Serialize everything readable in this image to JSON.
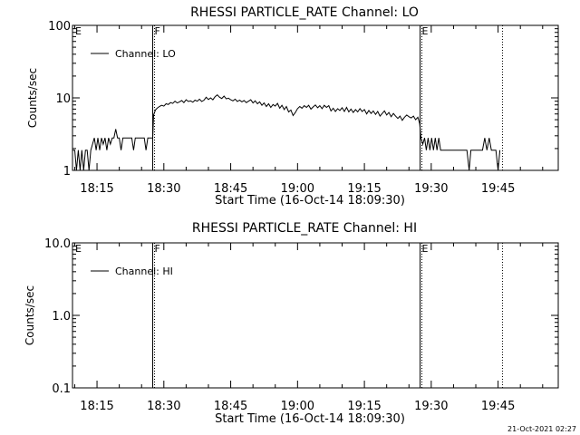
{
  "footer": {
    "timestamp": "21-Oct-2021 02:27"
  },
  "chart_data": [
    {
      "type": "line",
      "title": "RHESSI PARTICLE_RATE Channel: LO",
      "xlabel": "Start Time (16-Oct-14 18:09:30)",
      "ylabel": "Counts/sec",
      "yscale": "log",
      "xlim_minutes": [
        0,
        109
      ],
      "ylim": [
        1,
        100
      ],
      "x_ticks": [
        {
          "t": 5.5,
          "label": "18:15"
        },
        {
          "t": 20.5,
          "label": "18:30"
        },
        {
          "t": 35.5,
          "label": "18:45"
        },
        {
          "t": 50.5,
          "label": "19:00"
        },
        {
          "t": 65.5,
          "label": "19:15"
        },
        {
          "t": 80.5,
          "label": "19:30"
        },
        {
          "t": 95.5,
          "label": "19:45"
        }
      ],
      "y_ticks": [
        {
          "v": 1,
          "label": "1"
        },
        {
          "v": 10,
          "label": "10"
        },
        {
          "v": 100,
          "label": "100"
        }
      ],
      "markers": [
        {
          "t": 18.0,
          "label": "F",
          "style": "solid"
        },
        {
          "t": 18.4,
          "label": "",
          "style": "dotted"
        },
        {
          "t": 78.0,
          "label": "E",
          "style": "solid"
        },
        {
          "t": 78.4,
          "label": "",
          "style": "dotted"
        },
        {
          "t": 96.5,
          "label": "",
          "style": "dotted"
        },
        {
          "t": 0.2,
          "label": "E",
          "style": "none"
        }
      ],
      "legend": {
        "label": "Channel: LO",
        "position": "top-left"
      },
      "series": [
        {
          "name": "Channel: LO",
          "points": [
            [
              0,
              1.9
            ],
            [
              0.5,
              1.9
            ],
            [
              0.9,
              1
            ],
            [
              1.3,
              1.9
            ],
            [
              1.7,
              1
            ],
            [
              2.1,
              1.9
            ],
            [
              2.5,
              1
            ],
            [
              2.9,
              1.9
            ],
            [
              3.3,
              1.9
            ],
            [
              3.7,
              1
            ],
            [
              4.1,
              1.9
            ],
            [
              4.5,
              2.3
            ],
            [
              4.9,
              2.8
            ],
            [
              5.3,
              1.9
            ],
            [
              5.7,
              2.8
            ],
            [
              6.1,
              1.9
            ],
            [
              6.5,
              2.8
            ],
            [
              6.9,
              2.3
            ],
            [
              7.3,
              2.8
            ],
            [
              7.7,
              1.9
            ],
            [
              8.1,
              2.8
            ],
            [
              8.5,
              2.3
            ],
            [
              8.9,
              2.8
            ],
            [
              9.3,
              2.8
            ],
            [
              9.7,
              3.7
            ],
            [
              10.1,
              2.8
            ],
            [
              10.5,
              2.8
            ],
            [
              10.9,
              1.9
            ],
            [
              11.3,
              2.8
            ],
            [
              11.7,
              2.8
            ],
            [
              12.1,
              2.8
            ],
            [
              12.5,
              2.8
            ],
            [
              12.9,
              2.8
            ],
            [
              13.3,
              2.8
            ],
            [
              13.7,
              1.9
            ],
            [
              14.1,
              2.8
            ],
            [
              14.5,
              2.8
            ],
            [
              14.9,
              2.8
            ],
            [
              15.3,
              2.8
            ],
            [
              15.7,
              2.8
            ],
            [
              16.1,
              2.8
            ],
            [
              16.5,
              1.9
            ],
            [
              16.9,
              2.8
            ],
            [
              17.3,
              2.8
            ],
            [
              17.7,
              2.8
            ],
            [
              18.0,
              2.8
            ],
            [
              18.2,
              5.8
            ],
            [
              18.6,
              6.8
            ],
            [
              19.0,
              7.2
            ],
            [
              19.5,
              7.6
            ],
            [
              20,
              7.9
            ],
            [
              20.5,
              7.7
            ],
            [
              21,
              8.3
            ],
            [
              21.5,
              8.1
            ],
            [
              22,
              8.6
            ],
            [
              22.5,
              8.4
            ],
            [
              23,
              9.0
            ],
            [
              23.5,
              8.5
            ],
            [
              24,
              8.8
            ],
            [
              24.5,
              9.2
            ],
            [
              25,
              8.6
            ],
            [
              25.5,
              9.4
            ],
            [
              26,
              8.9
            ],
            [
              26.5,
              9.1
            ],
            [
              27,
              8.7
            ],
            [
              27.5,
              9.3
            ],
            [
              28,
              9.0
            ],
            [
              28.5,
              9.6
            ],
            [
              29,
              8.9
            ],
            [
              29.5,
              9.3
            ],
            [
              30,
              10.2
            ],
            [
              30.5,
              9.5
            ],
            [
              31,
              10.0
            ],
            [
              31.5,
              9.4
            ],
            [
              32,
              10.4
            ],
            [
              32.5,
              11.0
            ],
            [
              33,
              10.2
            ],
            [
              33.5,
              9.8
            ],
            [
              34,
              10.6
            ],
            [
              34.5,
              9.7
            ],
            [
              35,
              9.9
            ],
            [
              35.5,
              9.4
            ],
            [
              36,
              9.1
            ],
            [
              36.5,
              9.6
            ],
            [
              37,
              8.9
            ],
            [
              37.5,
              9.3
            ],
            [
              38,
              8.8
            ],
            [
              38.5,
              9.2
            ],
            [
              39,
              8.6
            ],
            [
              39.5,
              9.0
            ],
            [
              40,
              9.4
            ],
            [
              40.5,
              8.5
            ],
            [
              41,
              9.1
            ],
            [
              41.5,
              8.3
            ],
            [
              42,
              8.8
            ],
            [
              42.5,
              7.9
            ],
            [
              43,
              8.5
            ],
            [
              43.5,
              7.6
            ],
            [
              44,
              8.3
            ],
            [
              44.5,
              7.4
            ],
            [
              45,
              8.1
            ],
            [
              45.5,
              7.7
            ],
            [
              46,
              8.4
            ],
            [
              46.5,
              7.2
            ],
            [
              47,
              7.9
            ],
            [
              47.5,
              6.9
            ],
            [
              48,
              7.6
            ],
            [
              48.5,
              6.4
            ],
            [
              49,
              6.8
            ],
            [
              49.5,
              5.7
            ],
            [
              50,
              6.3
            ],
            [
              50.5,
              7.1
            ],
            [
              51,
              7.6
            ],
            [
              51.5,
              7.2
            ],
            [
              52,
              7.8
            ],
            [
              52.5,
              7.4
            ],
            [
              53,
              7.9
            ],
            [
              53.5,
              7.0
            ],
            [
              54,
              7.5
            ],
            [
              54.5,
              8.0
            ],
            [
              55,
              7.3
            ],
            [
              55.5,
              7.8
            ],
            [
              56,
              7.1
            ],
            [
              56.5,
              7.9
            ],
            [
              57,
              7.4
            ],
            [
              57.5,
              7.8
            ],
            [
              58,
              6.6
            ],
            [
              58.5,
              7.2
            ],
            [
              59,
              6.5
            ],
            [
              59.5,
              7.1
            ],
            [
              60,
              6.7
            ],
            [
              60.5,
              7.3
            ],
            [
              61,
              6.5
            ],
            [
              61.5,
              7.4
            ],
            [
              62,
              6.4
            ],
            [
              62.5,
              7.0
            ],
            [
              63,
              6.3
            ],
            [
              63.5,
              6.9
            ],
            [
              64,
              6.4
            ],
            [
              64.5,
              7.1
            ],
            [
              65,
              6.5
            ],
            [
              65.5,
              6.9
            ],
            [
              66,
              6.0
            ],
            [
              66.5,
              6.7
            ],
            [
              67,
              6.1
            ],
            [
              67.5,
              6.6
            ],
            [
              68,
              5.9
            ],
            [
              68.5,
              6.5
            ],
            [
              69,
              5.6
            ],
            [
              69.5,
              6.1
            ],
            [
              70,
              6.6
            ],
            [
              70.5,
              5.8
            ],
            [
              71,
              6.3
            ],
            [
              71.5,
              5.5
            ],
            [
              72,
              6.1
            ],
            [
              72.5,
              5.6
            ],
            [
              73,
              5.2
            ],
            [
              73.5,
              5.6
            ],
            [
              74,
              4.9
            ],
            [
              74.5,
              5.4
            ],
            [
              75,
              5.8
            ],
            [
              75.5,
              5.5
            ],
            [
              76,
              5.3
            ],
            [
              76.5,
              5.6
            ],
            [
              77,
              5.0
            ],
            [
              77.5,
              5.4
            ],
            [
              77.9,
              4.4
            ],
            [
              78.2,
              2.8
            ],
            [
              78.6,
              2.3
            ],
            [
              79,
              2.8
            ],
            [
              79.4,
              1.9
            ],
            [
              79.8,
              2.8
            ],
            [
              80.2,
              1.9
            ],
            [
              80.6,
              2.8
            ],
            [
              81,
              1.9
            ],
            [
              81.4,
              2.8
            ],
            [
              81.8,
              1.9
            ],
            [
              82.2,
              2.8
            ],
            [
              82.6,
              1.9
            ],
            [
              83,
              1.9
            ],
            [
              83.5,
              1.9
            ],
            [
              84,
              1.9
            ],
            [
              84.5,
              1.9
            ],
            [
              85,
              1.9
            ],
            [
              85.5,
              1.9
            ],
            [
              86,
              1.9
            ],
            [
              86.5,
              1.9
            ],
            [
              87,
              1.9
            ],
            [
              87.5,
              1.9
            ],
            [
              88,
              1.9
            ],
            [
              88.5,
              1.9
            ],
            [
              89,
              1
            ],
            [
              89.4,
              1.9
            ],
            [
              90,
              1.9
            ],
            [
              90.5,
              1.9
            ],
            [
              91,
              1.9
            ],
            [
              91.5,
              1.9
            ],
            [
              92,
              1.9
            ],
            [
              92.5,
              2.8
            ],
            [
              93,
              1.9
            ],
            [
              93.5,
              2.8
            ],
            [
              94,
              1.9
            ],
            [
              94.5,
              1.9
            ],
            [
              95,
              1.9
            ],
            [
              95.5,
              1
            ],
            [
              95.9,
              1.9
            ]
          ]
        }
      ]
    },
    {
      "type": "line",
      "title": "RHESSI PARTICLE_RATE Channel: HI",
      "xlabel": "Start Time (16-Oct-14 18:09:30)",
      "ylabel": "Counts/sec",
      "yscale": "log",
      "xlim_minutes": [
        0,
        109
      ],
      "ylim": [
        0.1,
        10
      ],
      "x_ticks": [
        {
          "t": 5.5,
          "label": "18:15"
        },
        {
          "t": 20.5,
          "label": "18:30"
        },
        {
          "t": 35.5,
          "label": "18:45"
        },
        {
          "t": 50.5,
          "label": "19:00"
        },
        {
          "t": 65.5,
          "label": "19:15"
        },
        {
          "t": 80.5,
          "label": "19:30"
        },
        {
          "t": 95.5,
          "label": "19:45"
        }
      ],
      "y_ticks": [
        {
          "v": 0.1,
          "label": "0.1"
        },
        {
          "v": 1,
          "label": "1.0"
        },
        {
          "v": 10,
          "label": "10.0"
        }
      ],
      "markers": [
        {
          "t": 18.0,
          "label": "F",
          "style": "solid"
        },
        {
          "t": 18.4,
          "label": "",
          "style": "dotted"
        },
        {
          "t": 78.0,
          "label": "E",
          "style": "solid"
        },
        {
          "t": 78.4,
          "label": "",
          "style": "dotted"
        },
        {
          "t": 96.5,
          "label": "",
          "style": "dotted"
        },
        {
          "t": 0.2,
          "label": "E",
          "style": "none"
        }
      ],
      "legend": {
        "label": "Channel: HI",
        "position": "top-left"
      },
      "series": [
        {
          "name": "Channel: HI",
          "points": []
        }
      ]
    }
  ]
}
